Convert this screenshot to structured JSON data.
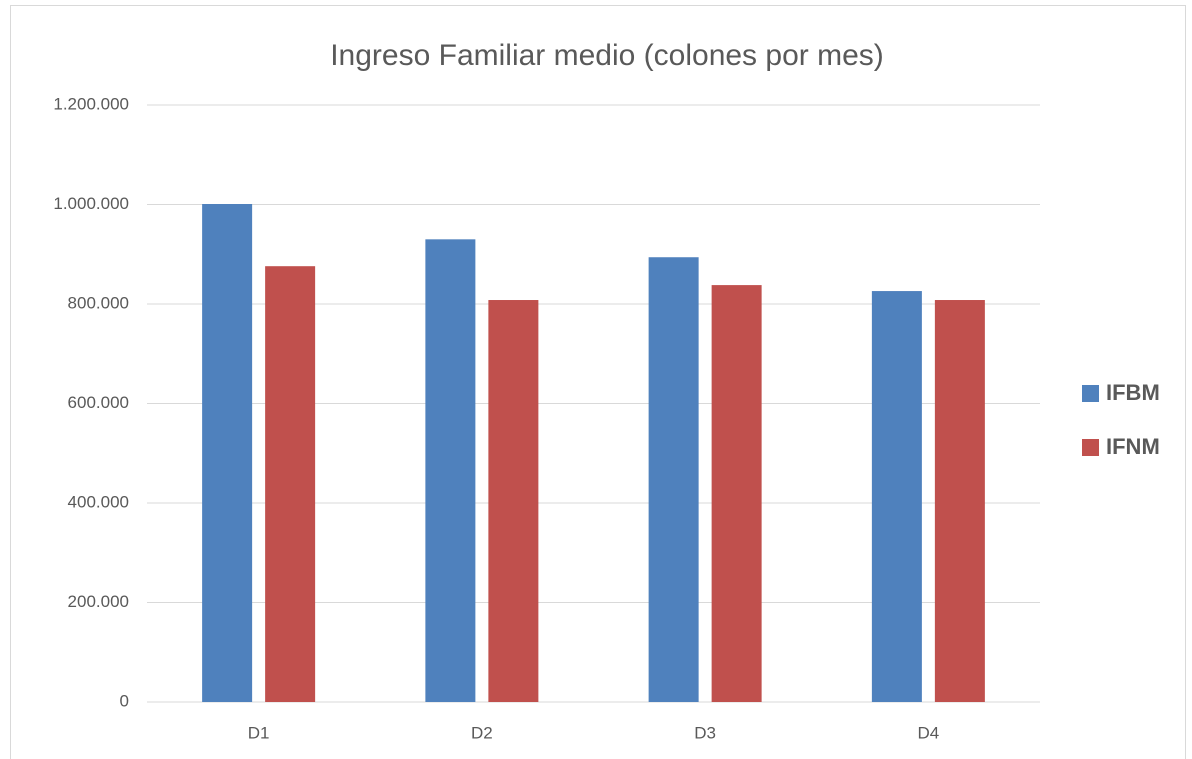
{
  "chart_data": {
    "type": "bar",
    "title": "Ingreso Familiar medio (colones por mes)",
    "categories": [
      "D1",
      "D2",
      "D3",
      "D4"
    ],
    "series": [
      {
        "name": "IFBM",
        "color": "#4f81bd",
        "values": [
          1001000,
          930000,
          894000,
          826000
        ]
      },
      {
        "name": "IFNM",
        "color": "#c0504d",
        "values": [
          876000,
          808000,
          838000,
          808000
        ]
      }
    ],
    "ylim": [
      0,
      1200000
    ],
    "yticks": [
      0,
      {
        "value": 200000,
        "label": "200.000"
      },
      {
        "value": 400000,
        "label": "400.000"
      },
      {
        "value": 600000,
        "label": "600.000"
      },
      {
        "value": 800000,
        "label": "800.000"
      },
      {
        "value": 1000000,
        "label": "1.000.000"
      },
      {
        "value": 1200000,
        "label": "1.200.000"
      }
    ],
    "grid": true,
    "legend": "right"
  }
}
